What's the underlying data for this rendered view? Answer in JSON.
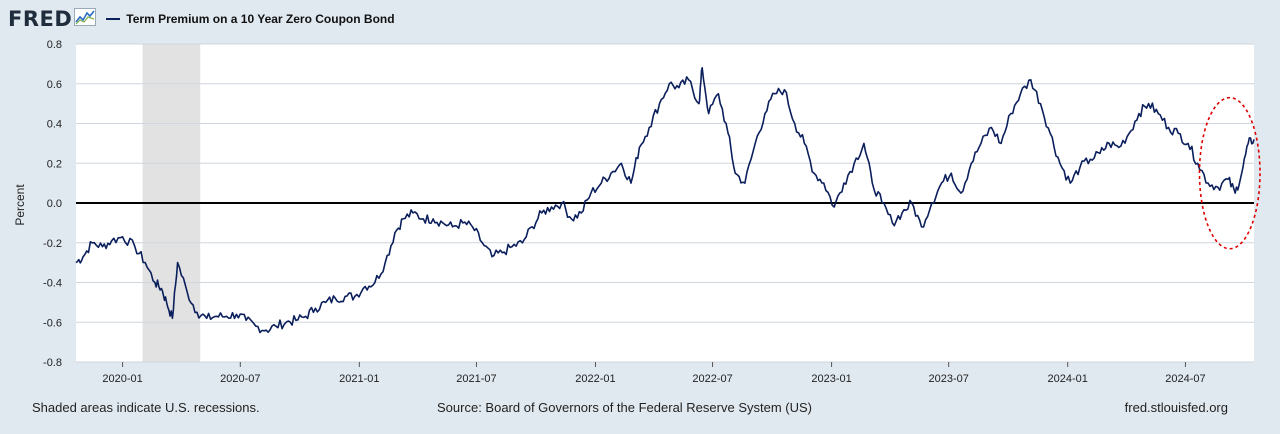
{
  "header": {
    "logo_text": "FRED",
    "logo_icon": "line-chart-icon",
    "legend_label": "Term Premium on a 10 Year Zero Coupon Bond"
  },
  "footer": {
    "left": "Shaded areas indicate U.S. recessions.",
    "center": "Source: Board of Governors of the Federal Reserve System (US)",
    "right": "fred.stlouisfed.org"
  },
  "colors": {
    "line": "#0b1f5c",
    "recession": "#e2e2e2",
    "annotation": "#dd0000",
    "page_bg": "#e1e9f0"
  },
  "chart_data": {
    "type": "line",
    "title": "",
    "xlabel": "",
    "ylabel": "Percent",
    "ylim": [
      -0.8,
      0.8
    ],
    "yticks": [
      0.8,
      0.6,
      0.4,
      0.2,
      0.0,
      -0.2,
      -0.4,
      -0.6,
      -0.8
    ],
    "ytick_labels": [
      "0.8",
      "0.6",
      "0.4",
      "0.2",
      "0.0",
      "-0.2",
      "-0.4",
      "-0.6",
      "-0.8"
    ],
    "xticks": [
      "2020-01",
      "2020-07",
      "2021-01",
      "2021-07",
      "2022-01",
      "2022-07",
      "2023-01",
      "2023-07",
      "2024-01",
      "2024-07"
    ],
    "xlim": [
      "2019-10-21",
      "2024-10-15"
    ],
    "grid": true,
    "zero_line": true,
    "legend_position": "top-left",
    "recessions": [
      {
        "start": "2020-02-01",
        "end": "2020-04-30"
      }
    ],
    "annotation": {
      "shape": "dashed-ellipse",
      "x_start": "2024-08-01",
      "x_end": "2024-10-15",
      "y_low": -0.2,
      "y_high": 0.5
    },
    "series": [
      {
        "x": [
          "2019-10-21",
          "2019-11-01",
          "2019-11-15",
          "2019-12-01",
          "2019-12-15",
          "2020-01-01",
          "2020-01-20",
          "2020-02-05",
          "2020-02-20",
          "2020-03-01",
          "2020-03-09",
          "2020-03-18",
          "2020-03-26",
          "2020-04-10",
          "2020-04-25",
          "2020-05-10",
          "2020-05-25",
          "2020-06-10",
          "2020-06-25",
          "2020-07-10",
          "2020-07-25",
          "2020-08-10",
          "2020-08-25",
          "2020-09-10",
          "2020-09-25",
          "2020-10-10",
          "2020-10-25",
          "2020-11-10",
          "2020-11-25",
          "2020-12-10",
          "2020-12-25",
          "2021-01-10",
          "2021-01-25",
          "2021-02-10",
          "2021-02-25",
          "2021-03-10",
          "2021-03-25",
          "2021-04-10",
          "2021-04-25",
          "2021-05-10",
          "2021-05-25",
          "2021-06-10",
          "2021-06-25",
          "2021-07-10",
          "2021-07-25",
          "2021-08-10",
          "2021-08-25",
          "2021-09-10",
          "2021-09-25",
          "2021-10-10",
          "2021-10-25",
          "2021-11-10",
          "2021-11-25",
          "2021-12-10",
          "2021-12-25",
          "2022-01-10",
          "2022-01-25",
          "2022-02-10",
          "2022-02-25",
          "2022-03-10",
          "2022-03-25",
          "2022-04-10",
          "2022-04-25",
          "2022-05-10",
          "2022-05-25",
          "2022-06-10",
          "2022-06-15",
          "2022-06-25",
          "2022-07-10",
          "2022-07-25",
          "2022-08-05",
          "2022-08-20",
          "2022-09-05",
          "2022-09-20",
          "2022-10-05",
          "2022-10-20",
          "2022-11-05",
          "2022-11-20",
          "2022-12-05",
          "2022-12-20",
          "2023-01-05",
          "2023-01-20",
          "2023-02-05",
          "2023-02-20",
          "2023-03-05",
          "2023-03-20",
          "2023-04-05",
          "2023-04-20",
          "2023-05-05",
          "2023-05-20",
          "2023-06-05",
          "2023-06-20",
          "2023-07-05",
          "2023-07-20",
          "2023-08-05",
          "2023-08-20",
          "2023-09-05",
          "2023-09-20",
          "2023-10-05",
          "2023-10-20",
          "2023-11-05",
          "2023-11-20",
          "2023-12-05",
          "2023-12-20",
          "2024-01-05",
          "2024-01-20",
          "2024-02-05",
          "2024-02-20",
          "2024-03-05",
          "2024-03-20",
          "2024-04-05",
          "2024-04-20",
          "2024-05-05",
          "2024-05-20",
          "2024-06-05",
          "2024-06-20",
          "2024-07-05",
          "2024-07-20",
          "2024-08-05",
          "2024-08-20",
          "2024-09-05",
          "2024-09-16",
          "2024-09-26",
          "2024-10-06",
          "2024-10-15"
        ],
        "y": [
          -0.3,
          -0.27,
          -0.2,
          -0.22,
          -0.19,
          -0.17,
          -0.22,
          -0.3,
          -0.4,
          -0.43,
          -0.5,
          -0.58,
          -0.3,
          -0.45,
          -0.55,
          -0.58,
          -0.57,
          -0.57,
          -0.56,
          -0.59,
          -0.62,
          -0.64,
          -0.62,
          -0.6,
          -0.59,
          -0.57,
          -0.53,
          -0.5,
          -0.48,
          -0.47,
          -0.47,
          -0.42,
          -0.4,
          -0.3,
          -0.15,
          -0.08,
          -0.05,
          -0.08,
          -0.08,
          -0.1,
          -0.12,
          -0.1,
          -0.12,
          -0.2,
          -0.27,
          -0.25,
          -0.22,
          -0.2,
          -0.12,
          -0.05,
          -0.02,
          0.0,
          -0.08,
          -0.05,
          0.05,
          0.1,
          0.15,
          0.2,
          0.1,
          0.28,
          0.38,
          0.5,
          0.6,
          0.58,
          0.62,
          0.5,
          0.68,
          0.45,
          0.55,
          0.35,
          0.15,
          0.1,
          0.3,
          0.45,
          0.55,
          0.57,
          0.4,
          0.3,
          0.15,
          0.1,
          -0.02,
          0.1,
          0.2,
          0.3,
          0.1,
          0.0,
          -0.1,
          -0.05,
          0.0,
          -0.12,
          0.0,
          0.1,
          0.15,
          0.05,
          0.2,
          0.3,
          0.38,
          0.3,
          0.45,
          0.55,
          0.62,
          0.5,
          0.35,
          0.2,
          0.1,
          0.18,
          0.22,
          0.25,
          0.3,
          0.28,
          0.35,
          0.45,
          0.5,
          0.45,
          0.38,
          0.35,
          0.3,
          0.2,
          0.1,
          0.08,
          0.12,
          0.05,
          0.15,
          0.3,
          0.32
        ]
      }
    ]
  }
}
